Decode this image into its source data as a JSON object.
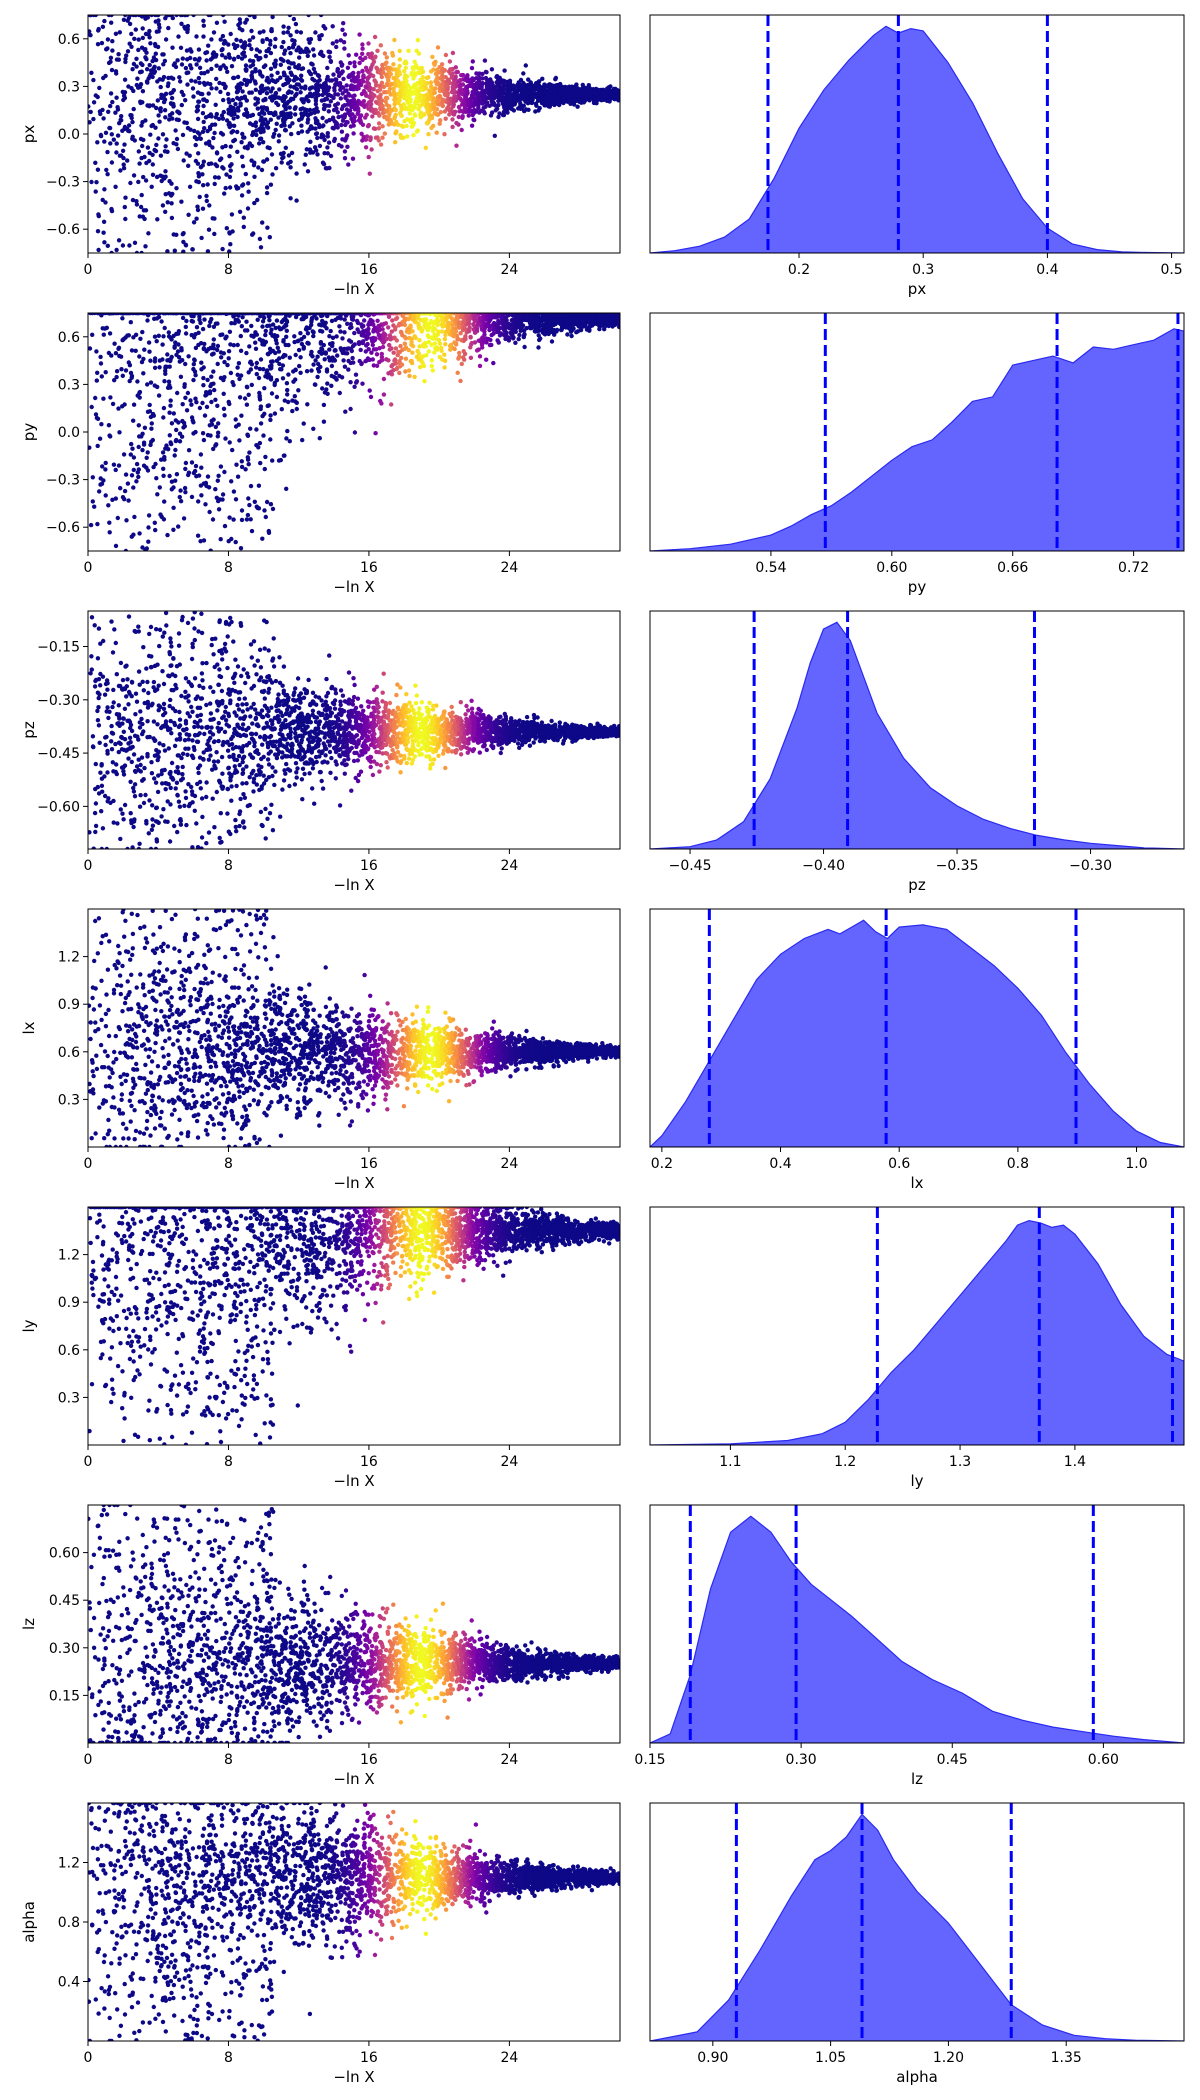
{
  "figure": {
    "x_label_left": "−ln X",
    "colormap": [
      "#0d0887",
      "#41049d",
      "#6a00a8",
      "#8f0da4",
      "#b12a90",
      "#cc4778",
      "#e16462",
      "#f2844b",
      "#fca636",
      "#fcce25",
      "#f0f921"
    ],
    "kde_fill": "#6464ff",
    "kde_stroke": "#2a2af0",
    "quantile_line": "#0000ff"
  },
  "chart_data": [
    {
      "type": "scatter",
      "param": "px",
      "ylabel": "px",
      "xlabel": "−ln X",
      "xlim": [
        0,
        30.3
      ],
      "x_ticks": [
        "0",
        "8",
        "16",
        "24"
      ],
      "x_tick_values": [
        0,
        8,
        16,
        24
      ],
      "ylim": [
        -0.75,
        0.75
      ],
      "y_ticks": [
        "0.6",
        "0.3",
        "0.0",
        "−0.3",
        "−0.6"
      ],
      "y_tick_values": [
        0.6,
        0.3,
        0.0,
        -0.3,
        -0.6
      ],
      "description_points": {
        "converge_value": 0.25,
        "upper_edge": 0.75,
        "lower_start": -0.75,
        "peak_weight_x": 18.5,
        "end_x": 30.3
      },
      "colorscale": "plasma, weight peaks near −ln X ≈ 18–20"
    },
    {
      "type": "area",
      "param": "px",
      "xlabel": "px",
      "xlim": [
        0.08,
        0.51
      ],
      "x_ticks": [
        "0.2",
        "0.3",
        "0.4",
        "0.5"
      ],
      "x_tick_values": [
        0.2,
        0.3,
        0.4,
        0.5
      ],
      "quantiles": [
        0.175,
        0.28,
        0.4
      ],
      "density": {
        "x": [
          0.08,
          0.1,
          0.12,
          0.14,
          0.16,
          0.18,
          0.2,
          0.22,
          0.24,
          0.26,
          0.27,
          0.28,
          0.29,
          0.3,
          0.32,
          0.34,
          0.36,
          0.38,
          0.4,
          0.42,
          0.44,
          0.46,
          0.48,
          0.51
        ],
        "y": [
          0.0,
          0.01,
          0.03,
          0.07,
          0.15,
          0.33,
          0.55,
          0.72,
          0.85,
          0.96,
          1.0,
          0.97,
          0.99,
          0.98,
          0.84,
          0.66,
          0.44,
          0.24,
          0.11,
          0.04,
          0.015,
          0.005,
          0.002,
          0.0
        ]
      }
    },
    {
      "type": "scatter",
      "param": "py",
      "ylabel": "py",
      "xlabel": "−ln X",
      "xlim": [
        0,
        30.3
      ],
      "x_ticks": [
        "0",
        "8",
        "16",
        "24"
      ],
      "x_tick_values": [
        0,
        8,
        16,
        24
      ],
      "ylim": [
        -0.75,
        0.75
      ],
      "y_ticks": [
        "0.6",
        "0.3",
        "0.0",
        "−0.3",
        "−0.6"
      ],
      "y_tick_values": [
        0.6,
        0.3,
        0.0,
        -0.3,
        -0.6
      ],
      "description_points": {
        "converge_value": 0.72,
        "upper_edge": 0.75,
        "lower_start": -0.75,
        "peak_weight_x": 19.5,
        "end_x": 30.3
      },
      "colorscale": "plasma, weight peaks near −ln X ≈ 19–20"
    },
    {
      "type": "area",
      "param": "py",
      "xlabel": "py",
      "xlim": [
        0.48,
        0.745
      ],
      "x_ticks": [
        "0.54",
        "0.60",
        "0.66",
        "0.72"
      ],
      "x_tick_values": [
        0.54,
        0.6,
        0.66,
        0.72
      ],
      "quantiles": [
        0.567,
        0.682,
        0.742
      ],
      "density": {
        "x": [
          0.48,
          0.5,
          0.52,
          0.54,
          0.55,
          0.56,
          0.57,
          0.58,
          0.59,
          0.6,
          0.61,
          0.62,
          0.63,
          0.64,
          0.65,
          0.66,
          0.67,
          0.68,
          0.69,
          0.7,
          0.71,
          0.72,
          0.73,
          0.74,
          0.745
        ],
        "y": [
          0.0,
          0.01,
          0.03,
          0.07,
          0.11,
          0.16,
          0.2,
          0.26,
          0.33,
          0.4,
          0.46,
          0.49,
          0.57,
          0.66,
          0.68,
          0.82,
          0.84,
          0.86,
          0.83,
          0.9,
          0.89,
          0.91,
          0.93,
          0.98,
          0.97
        ]
      }
    },
    {
      "type": "scatter",
      "param": "pz",
      "ylabel": "pz",
      "xlabel": "−ln X",
      "xlim": [
        0,
        30.3
      ],
      "x_ticks": [
        "0",
        "8",
        "16",
        "24"
      ],
      "x_tick_values": [
        0,
        8,
        16,
        24
      ],
      "ylim": [
        -0.72,
        -0.05
      ],
      "y_ticks": [
        "−0.15",
        "−0.30",
        "−0.45",
        "−0.60"
      ],
      "y_tick_values": [
        -0.15,
        -0.3,
        -0.45,
        -0.6
      ],
      "description_points": {
        "converge_value": -0.39,
        "upper_edge": -0.05,
        "lower_start": -0.72,
        "peak_weight_x": 19.0,
        "end_x": 30.3
      },
      "colorscale": "plasma, weight peaks near −ln X ≈ 18–20"
    },
    {
      "type": "area",
      "param": "pz",
      "xlabel": "pz",
      "xlim": [
        -0.465,
        -0.265
      ],
      "x_ticks": [
        "−0.45",
        "−0.40",
        "−0.35",
        "−0.30"
      ],
      "x_tick_values": [
        -0.45,
        -0.4,
        -0.35,
        -0.3
      ],
      "quantiles": [
        -0.426,
        -0.391,
        -0.321
      ],
      "density": {
        "x": [
          -0.465,
          -0.45,
          -0.44,
          -0.43,
          -0.42,
          -0.41,
          -0.405,
          -0.4,
          -0.395,
          -0.39,
          -0.385,
          -0.38,
          -0.37,
          -0.36,
          -0.35,
          -0.34,
          -0.33,
          -0.32,
          -0.31,
          -0.3,
          -0.29,
          -0.28,
          -0.265
        ],
        "y": [
          0.0,
          0.01,
          0.04,
          0.12,
          0.31,
          0.62,
          0.82,
          0.97,
          1.0,
          0.92,
          0.76,
          0.6,
          0.4,
          0.27,
          0.19,
          0.13,
          0.09,
          0.06,
          0.04,
          0.025,
          0.015,
          0.005,
          0.0
        ]
      }
    },
    {
      "type": "scatter",
      "param": "lx",
      "ylabel": "lx",
      "xlabel": "−ln X",
      "xlim": [
        0,
        30.3
      ],
      "x_ticks": [
        "0",
        "8",
        "16",
        "24"
      ],
      "x_tick_values": [
        0,
        8,
        16,
        24
      ],
      "ylim": [
        0.0,
        1.5
      ],
      "y_ticks": [
        "1.2",
        "0.9",
        "0.6",
        "0.3"
      ],
      "y_tick_values": [
        1.2,
        0.9,
        0.6,
        0.3
      ],
      "description_points": {
        "converge_value": 0.6,
        "upper_edge": 1.5,
        "lower_start": 0.0,
        "peak_weight_x": 19.5,
        "end_x": 30.3
      },
      "colorscale": "plasma, weight peaks near −ln X ≈ 19–20"
    },
    {
      "type": "area",
      "param": "lx",
      "xlabel": "lx",
      "xlim": [
        0.18,
        1.08
      ],
      "x_ticks": [
        "0.2",
        "0.4",
        "0.6",
        "0.8",
        "1.0"
      ],
      "x_tick_values": [
        0.2,
        0.4,
        0.6,
        0.8,
        1.0
      ],
      "quantiles": [
        0.28,
        0.578,
        0.898
      ],
      "density": {
        "x": [
          0.18,
          0.2,
          0.24,
          0.28,
          0.32,
          0.36,
          0.4,
          0.44,
          0.48,
          0.5,
          0.52,
          0.54,
          0.56,
          0.58,
          0.6,
          0.64,
          0.68,
          0.72,
          0.76,
          0.8,
          0.84,
          0.88,
          0.92,
          0.96,
          1.0,
          1.04,
          1.08
        ],
        "y": [
          0.0,
          0.05,
          0.2,
          0.38,
          0.56,
          0.74,
          0.85,
          0.92,
          0.96,
          0.94,
          0.97,
          1.0,
          0.95,
          0.92,
          0.97,
          0.98,
          0.96,
          0.88,
          0.8,
          0.7,
          0.58,
          0.42,
          0.28,
          0.16,
          0.07,
          0.02,
          0.0
        ]
      }
    },
    {
      "type": "scatter",
      "param": "ly",
      "ylabel": "ly",
      "xlabel": "−ln X",
      "xlim": [
        0,
        30.3
      ],
      "x_ticks": [
        "0",
        "8",
        "16",
        "24"
      ],
      "x_tick_values": [
        0,
        8,
        16,
        24
      ],
      "ylim": [
        0.0,
        1.5
      ],
      "y_ticks": [
        "1.2",
        "0.9",
        "0.6",
        "0.3"
      ],
      "y_tick_values": [
        1.2,
        0.9,
        0.6,
        0.3
      ],
      "description_points": {
        "converge_value": 1.35,
        "upper_edge": 1.5,
        "lower_start": 0.0,
        "peak_weight_x": 19.0,
        "end_x": 30.3
      },
      "colorscale": "plasma, weight peaks near −ln X ≈ 18–20"
    },
    {
      "type": "area",
      "param": "ly",
      "xlabel": "ly",
      "xlim": [
        1.03,
        1.495
      ],
      "x_ticks": [
        "1.1",
        "1.2",
        "1.3",
        "1.4"
      ],
      "x_tick_values": [
        1.1,
        1.2,
        1.3,
        1.4
      ],
      "quantiles": [
        1.228,
        1.369,
        1.485
      ],
      "density": {
        "x": [
          1.03,
          1.1,
          1.15,
          1.18,
          1.2,
          1.22,
          1.24,
          1.26,
          1.28,
          1.3,
          1.32,
          1.34,
          1.35,
          1.36,
          1.37,
          1.38,
          1.39,
          1.4,
          1.42,
          1.44,
          1.46,
          1.48,
          1.495
        ],
        "y": [
          0.0,
          0.005,
          0.02,
          0.05,
          0.1,
          0.2,
          0.32,
          0.42,
          0.54,
          0.66,
          0.78,
          0.9,
          0.97,
          0.99,
          0.98,
          0.96,
          0.97,
          0.93,
          0.8,
          0.62,
          0.48,
          0.4,
          0.37
        ]
      }
    },
    {
      "type": "scatter",
      "param": "lz",
      "ylabel": "lz",
      "xlabel": "−ln X",
      "xlim": [
        0,
        30.3
      ],
      "x_ticks": [
        "0",
        "8",
        "16",
        "24"
      ],
      "x_tick_values": [
        0,
        8,
        16,
        24
      ],
      "ylim": [
        0.0,
        0.75
      ],
      "y_ticks": [
        "0.60",
        "0.45",
        "0.30",
        "0.15"
      ],
      "y_tick_values": [
        0.6,
        0.45,
        0.3,
        0.15
      ],
      "description_points": {
        "converge_value": 0.25,
        "upper_edge": 0.75,
        "lower_start": 0.0,
        "peak_weight_x": 19.0,
        "end_x": 30.3
      },
      "colorscale": "plasma, weight peaks near −ln X ≈ 18–20"
    },
    {
      "type": "area",
      "param": "lz",
      "xlabel": "lz",
      "xlim": [
        0.15,
        0.68
      ],
      "x_ticks": [
        "0.15",
        "0.30",
        "0.45",
        "0.60"
      ],
      "x_tick_values": [
        0.15,
        0.3,
        0.45,
        0.6
      ],
      "quantiles": [
        0.19,
        0.295,
        0.59
      ],
      "density": {
        "x": [
          0.15,
          0.17,
          0.19,
          0.21,
          0.23,
          0.25,
          0.27,
          0.29,
          0.31,
          0.33,
          0.35,
          0.37,
          0.4,
          0.43,
          0.46,
          0.49,
          0.52,
          0.55,
          0.58,
          0.61,
          0.64,
          0.68
        ],
        "y": [
          0.0,
          0.04,
          0.3,
          0.68,
          0.93,
          1.0,
          0.93,
          0.8,
          0.7,
          0.63,
          0.56,
          0.48,
          0.36,
          0.28,
          0.22,
          0.14,
          0.1,
          0.07,
          0.05,
          0.03,
          0.015,
          0.0
        ]
      }
    },
    {
      "type": "scatter",
      "param": "alpha",
      "ylabel": "alpha",
      "xlabel": "−ln X",
      "xlim": [
        0,
        30.3
      ],
      "x_ticks": [
        "0",
        "8",
        "16",
        "24"
      ],
      "x_tick_values": [
        0,
        8,
        16,
        24
      ],
      "ylim": [
        0.0,
        1.6
      ],
      "y_ticks": [
        "1.2",
        "0.8",
        "0.4"
      ],
      "y_tick_values": [
        1.2,
        0.8,
        0.4
      ],
      "description_points": {
        "converge_value": 1.1,
        "upper_edge": 1.6,
        "lower_start": 0.0,
        "peak_weight_x": 19.0,
        "end_x": 30.3
      },
      "colorscale": "plasma, weight peaks near −ln X ≈ 18–20"
    },
    {
      "type": "area",
      "param": "alpha",
      "xlabel": "alpha",
      "xlim": [
        0.82,
        1.5
      ],
      "x_ticks": [
        "0.90",
        "1.05",
        "1.20",
        "1.35"
      ],
      "x_tick_values": [
        0.9,
        1.05,
        1.2,
        1.35
      ],
      "quantiles": [
        0.93,
        1.09,
        1.28
      ],
      "density": {
        "x": [
          0.82,
          0.88,
          0.92,
          0.96,
          1.0,
          1.03,
          1.05,
          1.07,
          1.09,
          1.11,
          1.13,
          1.16,
          1.2,
          1.24,
          1.28,
          1.32,
          1.36,
          1.4,
          1.44,
          1.5
        ],
        "y": [
          0.0,
          0.04,
          0.18,
          0.4,
          0.64,
          0.8,
          0.84,
          0.9,
          1.0,
          0.93,
          0.8,
          0.66,
          0.52,
          0.34,
          0.16,
          0.07,
          0.025,
          0.01,
          0.003,
          0.0
        ]
      }
    }
  ]
}
